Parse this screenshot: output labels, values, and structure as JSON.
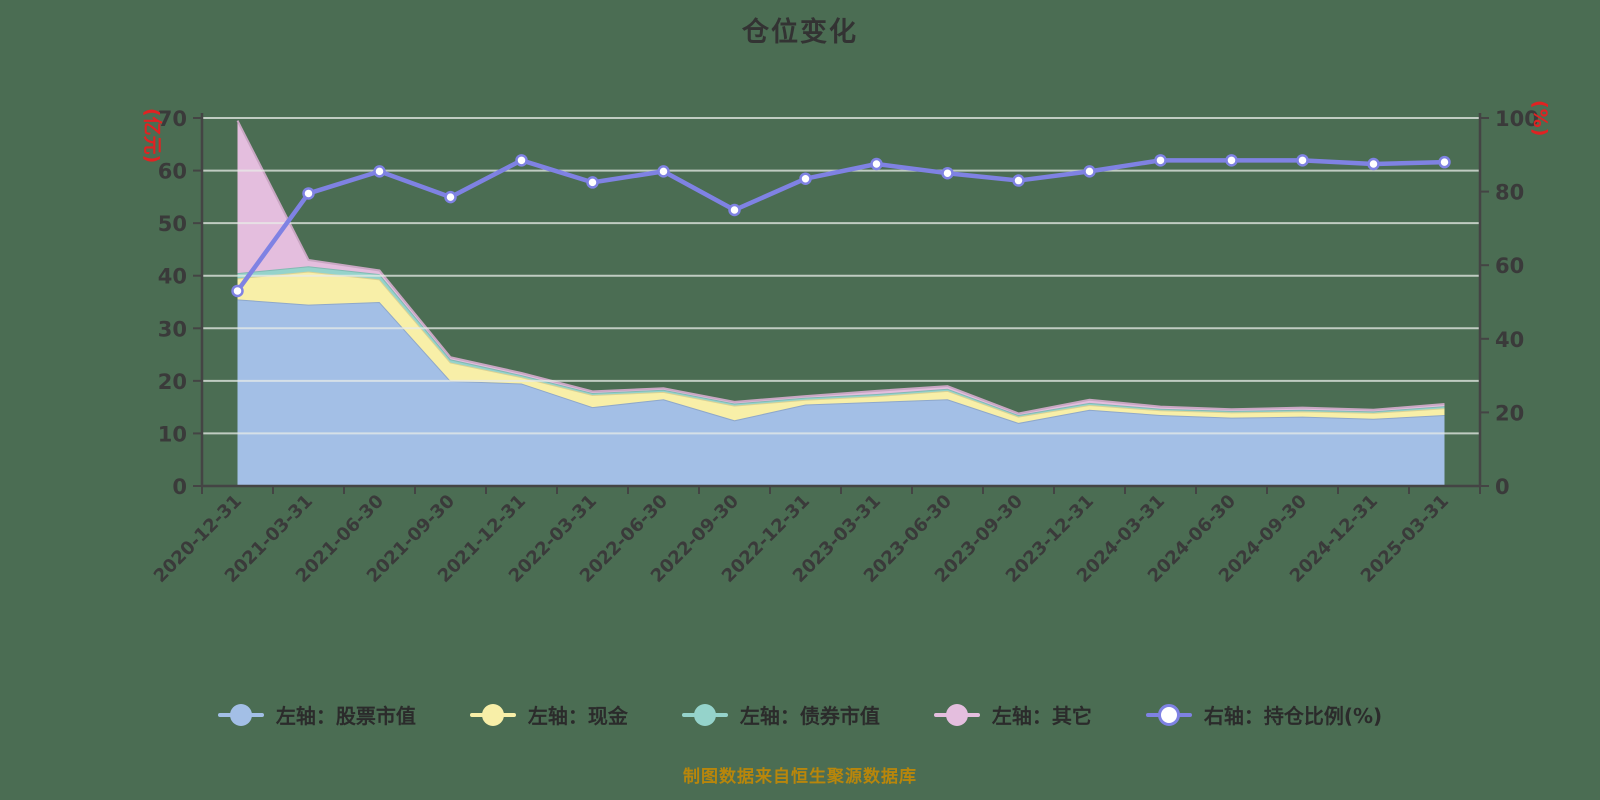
{
  "title": "仓位变化",
  "caption": "制图数据来自恒生聚源数据库",
  "colors": {
    "background": "#4b6d53",
    "title_text": "#333333",
    "axis_text": "#3a3a3a",
    "axis_line": "#444444",
    "axis_unit_text": "#e02222",
    "gridline": "#e8ece8",
    "caption_text": "#b8860b",
    "stocks": "#a3bfe6",
    "cash": "#f8efa8",
    "bonds": "#95d3cb",
    "other": "#e4bede",
    "ratio_line": "#7f82e3",
    "ratio_marker_fill": "#ffffff"
  },
  "legend": [
    {
      "label": "左轴：股票市值",
      "color_key": "stocks",
      "type": "filled"
    },
    {
      "label": "左轴：现金",
      "color_key": "cash",
      "type": "filled"
    },
    {
      "label": "左轴：债券市值",
      "color_key": "bonds",
      "type": "filled"
    },
    {
      "label": "左轴：其它",
      "color_key": "other",
      "type": "filled"
    },
    {
      "label": "右轴：持仓比例(%)",
      "color_key": "ratio_line",
      "type": "line-marker"
    }
  ],
  "chart_data": {
    "type": "area",
    "combo": "stacked-area(left-axis) + line(right-axis)",
    "title": "仓位变化",
    "categories": [
      "2020-12-31",
      "2021-03-31",
      "2021-06-30",
      "2021-09-30",
      "2021-12-31",
      "2022-03-31",
      "2022-06-30",
      "2022-09-30",
      "2022-12-31",
      "2023-03-31",
      "2023-06-30",
      "2023-09-30",
      "2023-12-31",
      "2024-03-31",
      "2024-06-30",
      "2024-09-30",
      "2024-12-31",
      "2025-03-31"
    ],
    "series": [
      {
        "name": "左轴：股票市值",
        "axis": "left",
        "render": "stacked-area",
        "color_key": "stocks",
        "values": [
          35.5,
          34.5,
          35.0,
          20.0,
          19.5,
          15.0,
          16.5,
          12.5,
          15.5,
          16.0,
          16.5,
          12.0,
          14.5,
          13.5,
          13.0,
          13.2,
          12.8,
          13.5
        ]
      },
      {
        "name": "左轴：现金",
        "axis": "left",
        "render": "stacked-area",
        "color_key": "cash",
        "values": [
          4.0,
          6.3,
          4.3,
          3.5,
          1.2,
          2.3,
          1.4,
          2.8,
          0.9,
          1.1,
          1.6,
          1.2,
          0.9,
          0.9,
          1.0,
          1.0,
          1.1,
          1.3
        ]
      },
      {
        "name": "左轴：债券市值",
        "axis": "left",
        "render": "stacked-area",
        "color_key": "bonds",
        "values": [
          1.0,
          1.0,
          1.0,
          0.6,
          0.4,
          0.4,
          0.4,
          0.4,
          0.4,
          0.4,
          0.4,
          0.3,
          0.4,
          0.3,
          0.3,
          0.3,
          0.3,
          0.4
        ]
      },
      {
        "name": "左轴：其它",
        "axis": "left",
        "render": "stacked-area",
        "color_key": "other",
        "values": [
          29.0,
          1.2,
          0.7,
          0.4,
          0.4,
          0.3,
          0.3,
          0.3,
          0.3,
          0.6,
          0.5,
          0.3,
          0.6,
          0.4,
          0.3,
          0.4,
          0.3,
          0.4
        ]
      },
      {
        "name": "右轴：持仓比例(%)",
        "axis": "right",
        "render": "line",
        "color_key": "ratio_line",
        "values": [
          53.0,
          79.5,
          85.5,
          78.5,
          88.5,
          82.5,
          85.5,
          75.0,
          83.5,
          87.5,
          85.0,
          83.0,
          85.5,
          88.5,
          88.5,
          88.5,
          87.5,
          88.0
        ]
      }
    ],
    "left_axis": {
      "unit": "(亿元)",
      "range": [
        0,
        70
      ],
      "tick_step": 10,
      "tick_labels": [
        "0",
        "10",
        "20",
        "30",
        "40",
        "50",
        "60",
        "70"
      ]
    },
    "right_axis": {
      "unit": "(%)",
      "range": [
        0,
        100
      ],
      "tick_step": 20,
      "tick_labels": [
        "0",
        "20",
        "40",
        "60",
        "80",
        "100"
      ]
    },
    "grid": true,
    "x_label_rotation": -45,
    "legend_position": "bottom"
  }
}
